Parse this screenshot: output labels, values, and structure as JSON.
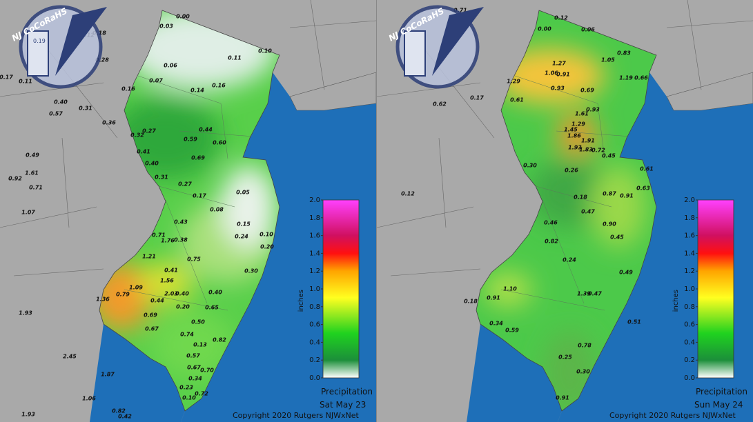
{
  "panels": [
    {
      "logo": "NJ CoCoRaHS",
      "logo_gauge": "0.19",
      "legend_title": "Precipitation",
      "legend_unit": "inches",
      "date": "Sat May 23",
      "copyright": "Copyright 2020 Rutgers NJWxNet",
      "legend_ticks": [
        {
          "value": 0,
          "label": "0.0"
        },
        {
          "value": 0.2,
          "label": "0.2"
        },
        {
          "value": 0.4,
          "label": "0.4"
        },
        {
          "value": 0.6,
          "label": "0.6"
        },
        {
          "value": 0.8,
          "label": "0.8"
        },
        {
          "value": 1,
          "label": "1.0"
        },
        {
          "value": 1.2,
          "label": "1.2"
        },
        {
          "value": 1.4,
          "label": "1.4"
        },
        {
          "value": 1.6,
          "label": "1.6"
        },
        {
          "value": 1.8,
          "label": "1.8"
        },
        {
          "value": 2,
          "label": "2.0"
        }
      ],
      "stations": [
        "0.00",
        "0.03",
        "0.12",
        "0.18",
        "0.28",
        "0.17",
        "0.11",
        "0.40",
        "0.57",
        "0.31",
        "0.36",
        "0.49",
        "1.61",
        "0.92",
        "0.71",
        "1.07",
        "0.06",
        "0.07",
        "0.14",
        "0.16",
        "0.16",
        "0.11",
        "0.10",
        "0.32",
        "0.27",
        "0.44",
        "0.59",
        "0.60",
        "0.41",
        "0.40",
        "0.69",
        "0.31",
        "0.27",
        "0.17",
        "0.08",
        "0.05",
        "0.15",
        "0.24",
        "0.10",
        "0.20",
        "0.30",
        "0.43",
        "0.71",
        "1.76",
        "0.38",
        "0.75",
        "1.21",
        "0.41",
        "1.56",
        "1.36",
        "0.79",
        "1.09",
        "0.44",
        "2.03",
        "0.40",
        "0.20",
        "0.40",
        "0.65",
        "0.69",
        "0.67",
        "0.50",
        "0.74",
        "0.13",
        "0.82",
        "0.57",
        "0.67",
        "0.70",
        "0.34",
        "0.23",
        "0.72",
        "0.10",
        "1.93",
        "2.45",
        "1.87",
        "1.06",
        "0.82",
        "0.42",
        "1.93"
      ]
    },
    {
      "logo": "NJ CoCoRaHS",
      "legend_title": "Precipitation",
      "legend_unit": "inches",
      "date": "Sun May 24",
      "copyright": "Copyright 2020 Rutgers NJWxNet",
      "legend_ticks": [
        {
          "value": 0,
          "label": "0.0"
        },
        {
          "value": 0.2,
          "label": "0.2"
        },
        {
          "value": 0.4,
          "label": "0.4"
        },
        {
          "value": 0.6,
          "label": "0.6"
        },
        {
          "value": 0.8,
          "label": "0.8"
        },
        {
          "value": 1,
          "label": "1.0"
        },
        {
          "value": 1.2,
          "label": "1.2"
        },
        {
          "value": 1.4,
          "label": "1.4"
        },
        {
          "value": 1.6,
          "label": "1.6"
        },
        {
          "value": 1.8,
          "label": "1.8"
        },
        {
          "value": 2,
          "label": "2.0"
        }
      ],
      "stations": [
        "0.71",
        "0.12",
        "0.06",
        "0.00",
        "0.83",
        "1.05",
        "1.29",
        "1.06",
        "0.91",
        "1.27",
        "0.93",
        "0.69",
        "1.19",
        "0.66",
        "0.61",
        "0.93",
        "1.61",
        "1.45",
        "1.29",
        "1.86",
        "1.91",
        "1.93",
        "1.83",
        "0.72",
        "0.30",
        "0.26",
        "0.18",
        "0.47",
        "0.45",
        "0.61",
        "0.87",
        "0.91",
        "0.63",
        "0.90",
        "0.45",
        "0.49",
        "0.82",
        "0.46",
        "0.24",
        "0.91",
        "1.10",
        "1.39",
        "0.47",
        "0.51",
        "0.34",
        "0.59",
        "0.78",
        "0.25",
        "0.30",
        "0.91",
        "0.18",
        "0.62",
        "0.17",
        "0.12"
      ]
    }
  ]
}
